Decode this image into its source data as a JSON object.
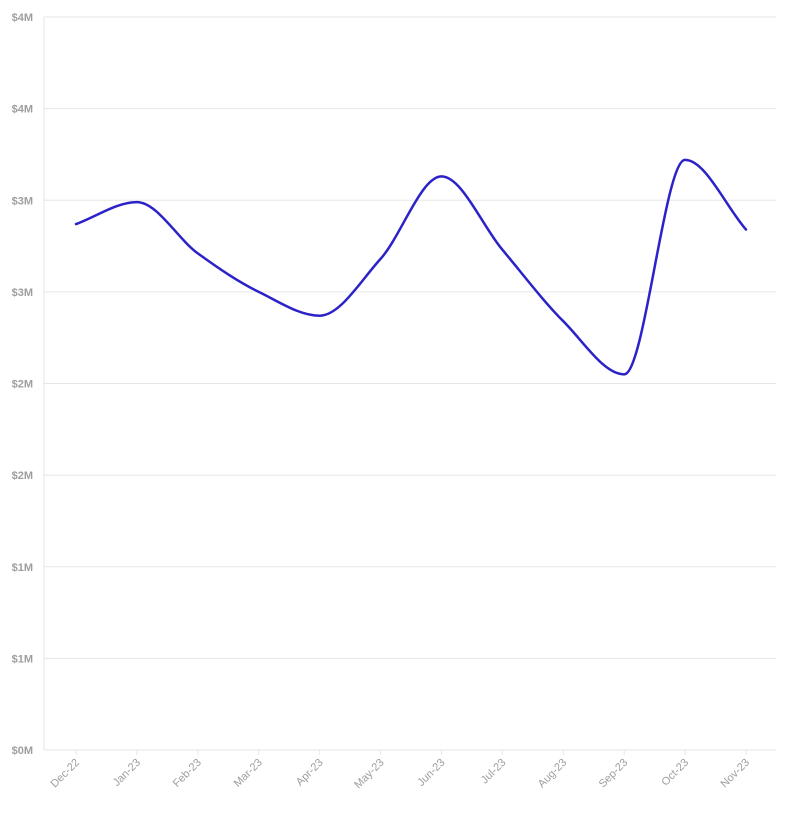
{
  "chart_data": {
    "type": "line",
    "title": "",
    "xlabel": "",
    "ylabel": "",
    "categories": [
      "Dec-22",
      "Jan-23",
      "Feb-23",
      "Mar-23",
      "Apr-23",
      "May-23",
      "Jun-23",
      "Jul-23",
      "Aug-23",
      "Sep-23",
      "Oct-23",
      "Nov-23"
    ],
    "series": [
      {
        "values": [
          2.87,
          2.99,
          2.71,
          2.5,
          2.37,
          2.68,
          3.13,
          2.73,
          2.34,
          2.05,
          3.22,
          2.84
        ],
        "color": "#2b22c8"
      }
    ],
    "ylim": [
      0,
      4
    ],
    "yticks": [
      0,
      0.5,
      1,
      1.5,
      2,
      2.5,
      3,
      3.5,
      4
    ],
    "ytick_labels": [
      "$0M",
      "$1M",
      "$1M",
      "$2M",
      "$2M",
      "$3M",
      "$3M",
      "$4M",
      "$4M"
    ],
    "grid": true,
    "legend": "none",
    "colors": {
      "gridline": "#e6e6e6",
      "tick_text": "#9e9e9e",
      "line": "#2b22c8"
    }
  }
}
